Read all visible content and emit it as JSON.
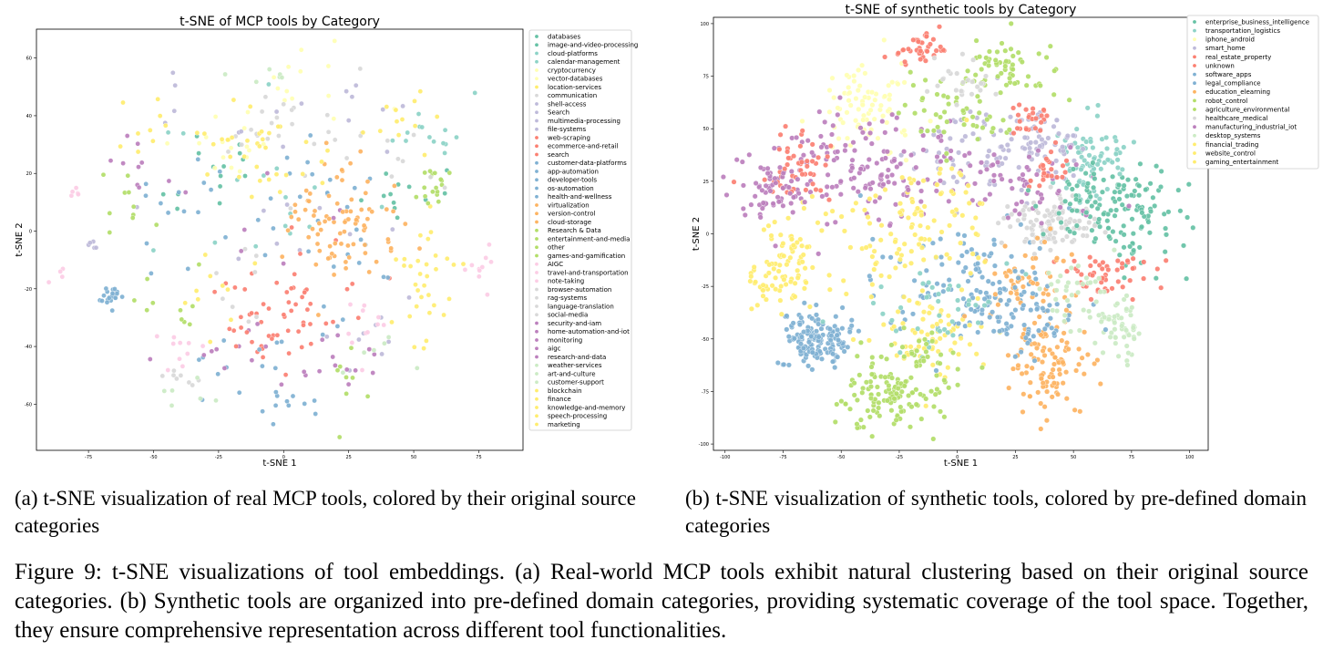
{
  "figure": {
    "subcaption_a": "(a) t-SNE visualization of real MCP tools, colored by their original source categories",
    "subcaption_b": "(b) t-SNE visualization of synthetic tools, colored by pre-defined domain categories",
    "caption": "Figure 9: t-SNE visualizations of tool embeddings. (a) Real-world MCP tools exhibit natural clustering based on their original source categories. (b) Synthetic tools are organized into pre-defined domain categories, providing systematic coverage of the tool space. Together, they ensure comprehensive representation across different tool functionalities."
  },
  "chart_data": [
    {
      "type": "scatter",
      "title": "t-SNE of MCP tools by Category",
      "xlabel": "t-SNE 1",
      "ylabel": "t-SNE 2",
      "xlim": [
        -95,
        92
      ],
      "ylim": [
        -76,
        70
      ],
      "xticks": [
        -75,
        -50,
        -25,
        0,
        25,
        50,
        75
      ],
      "yticks": [
        -60,
        -40,
        -20,
        0,
        20,
        40,
        60
      ],
      "grid": false,
      "legend_position": "right",
      "categories": [
        {
          "name": "databases",
          "color": "#66c2a5"
        },
        {
          "name": "image-and-video-processing",
          "color": "#66c2a5"
        },
        {
          "name": "cloud-platforms",
          "color": "#8dd3c7"
        },
        {
          "name": "calendar-management",
          "color": "#8dd3c7"
        },
        {
          "name": "cryptocurrency",
          "color": "#ffffb3"
        },
        {
          "name": "vector-databases",
          "color": "#ffffb3"
        },
        {
          "name": "location-services",
          "color": "#ffed6f"
        },
        {
          "name": "communication",
          "color": "#d9d9d9"
        },
        {
          "name": "shell-access",
          "color": "#bebada"
        },
        {
          "name": "Search",
          "color": "#bebada"
        },
        {
          "name": "multimedia-processing",
          "color": "#bebada"
        },
        {
          "name": "file-systems",
          "color": "#bebada"
        },
        {
          "name": "web-scraping",
          "color": "#fb8072"
        },
        {
          "name": "ecommerce-and-retail",
          "color": "#fb8072"
        },
        {
          "name": "search",
          "color": "#fb8072"
        },
        {
          "name": "customer-data-platforms",
          "color": "#80b1d3"
        },
        {
          "name": "app-automation",
          "color": "#80b1d3"
        },
        {
          "name": "developer-tools",
          "color": "#80b1d3"
        },
        {
          "name": "os-automation",
          "color": "#80b1d3"
        },
        {
          "name": "health-and-wellness",
          "color": "#80b1d3"
        },
        {
          "name": "virtualization",
          "color": "#fdb462"
        },
        {
          "name": "version-control",
          "color": "#fdb462"
        },
        {
          "name": "cloud-storage",
          "color": "#fdb462"
        },
        {
          "name": "Research & Data",
          "color": "#b3de69"
        },
        {
          "name": "entertainment-and-media",
          "color": "#b3de69"
        },
        {
          "name": "other",
          "color": "#b3de69"
        },
        {
          "name": "games-and-gamification",
          "color": "#b3de69"
        },
        {
          "name": "AIGC",
          "color": "#fccde5"
        },
        {
          "name": "travel-and-transportation",
          "color": "#fccde5"
        },
        {
          "name": "note-taking",
          "color": "#fccde5"
        },
        {
          "name": "browser-automation",
          "color": "#d9d9d9"
        },
        {
          "name": "rag-systems",
          "color": "#d9d9d9"
        },
        {
          "name": "language-translation",
          "color": "#d9d9d9"
        },
        {
          "name": "social-media",
          "color": "#d9d9d9"
        },
        {
          "name": "security-and-iam",
          "color": "#bc80bd"
        },
        {
          "name": "home-automation-and-iot",
          "color": "#bc80bd"
        },
        {
          "name": "monitoring",
          "color": "#bc80bd"
        },
        {
          "name": "aigc",
          "color": "#bc80bd"
        },
        {
          "name": "research-and-data",
          "color": "#bc80bd"
        },
        {
          "name": "weather-services",
          "color": "#ccebc5"
        },
        {
          "name": "art-and-culture",
          "color": "#ccebc5"
        },
        {
          "name": "customer-support",
          "color": "#ccebc5"
        },
        {
          "name": "blockchain",
          "color": "#ffed6f"
        },
        {
          "name": "finance",
          "color": "#ffed6f"
        },
        {
          "name": "knowledge-and-memory",
          "color": "#ffed6f"
        },
        {
          "name": "speech-processing",
          "color": "#ffed6f"
        },
        {
          "name": "marketing",
          "color": "#ffed6f"
        }
      ],
      "clusters": [
        {
          "cat": 0,
          "cx": -30,
          "cy": 20,
          "sx": 12,
          "sy": 10,
          "n": 14
        },
        {
          "cat": 1,
          "cx": 50,
          "cy": 15,
          "sx": 8,
          "sy": 6,
          "n": 12
        },
        {
          "cat": 2,
          "cx": 55,
          "cy": 36,
          "sx": 8,
          "sy": 6,
          "n": 14
        },
        {
          "cat": 3,
          "cx": -10,
          "cy": 10,
          "sx": 20,
          "sy": 15,
          "n": 16
        },
        {
          "cat": 4,
          "cx": -20,
          "cy": 30,
          "sx": 10,
          "sy": 6,
          "n": 16
        },
        {
          "cat": 5,
          "cx": 10,
          "cy": 50,
          "sx": 15,
          "sy": 8,
          "n": 14
        },
        {
          "cat": 6,
          "cx": 55,
          "cy": -25,
          "sx": 6,
          "sy": 10,
          "n": 18
        },
        {
          "cat": 7,
          "cx": -5,
          "cy": 38,
          "sx": 6,
          "sy": 6,
          "n": 14
        },
        {
          "cat": 8,
          "cx": -30,
          "cy": 40,
          "sx": 12,
          "sy": 10,
          "n": 8
        },
        {
          "cat": 9,
          "cx": 30,
          "cy": 40,
          "sx": 10,
          "sy": 8,
          "n": 8
        },
        {
          "cat": 10,
          "cx": 0,
          "cy": -5,
          "sx": 20,
          "sy": 15,
          "n": 10
        },
        {
          "cat": 11,
          "cx": 35,
          "cy": -35,
          "sx": 10,
          "sy": 8,
          "n": 8
        },
        {
          "cat": 12,
          "cx": -5,
          "cy": -25,
          "sx": 12,
          "sy": 8,
          "n": 14
        },
        {
          "cat": 13,
          "cx": -10,
          "cy": -35,
          "sx": 10,
          "sy": 8,
          "n": 14
        },
        {
          "cat": 14,
          "cx": 15,
          "cy": -15,
          "sx": 15,
          "sy": 10,
          "n": 16
        },
        {
          "cat": 15,
          "cx": -40,
          "cy": 10,
          "sx": 10,
          "sy": 10,
          "n": 14
        },
        {
          "cat": 16,
          "cx": 10,
          "cy": 15,
          "sx": 12,
          "sy": 10,
          "n": 14
        },
        {
          "cat": 17,
          "cx": -20,
          "cy": -50,
          "sx": 15,
          "sy": 8,
          "n": 14
        },
        {
          "cat": 18,
          "cx": 20,
          "cy": 0,
          "sx": 15,
          "sy": 15,
          "n": 16
        },
        {
          "cat": 19,
          "cx": 0,
          "cy": -60,
          "sx": 10,
          "sy": 4,
          "n": 10
        },
        {
          "cat": 20,
          "cx": 25,
          "cy": 10,
          "sx": 10,
          "sy": 8,
          "n": 22
        },
        {
          "cat": 21,
          "cx": 20,
          "cy": -5,
          "sx": 10,
          "sy": 8,
          "n": 20
        },
        {
          "cat": 22,
          "cx": 30,
          "cy": 0,
          "sx": 8,
          "sy": 8,
          "n": 20
        },
        {
          "cat": 23,
          "cx": -45,
          "cy": -25,
          "sx": 10,
          "sy": 8,
          "n": 10
        },
        {
          "cat": 24,
          "cx": 60,
          "cy": 15,
          "sx": 4,
          "sy": 4,
          "n": 10
        },
        {
          "cat": 25,
          "cx": -60,
          "cy": 10,
          "sx": 8,
          "sy": 8,
          "n": 10
        },
        {
          "cat": 26,
          "cx": 25,
          "cy": -55,
          "sx": 6,
          "sy": 8,
          "n": 8
        },
        {
          "cat": 27,
          "cx": -45,
          "cy": -40,
          "sx": 8,
          "sy": 4,
          "n": 10
        },
        {
          "cat": 28,
          "cx": 30,
          "cy": -30,
          "sx": 8,
          "sy": 8,
          "n": 12
        },
        {
          "cat": 29,
          "cx": 75,
          "cy": -12,
          "sx": 4,
          "sy": 4,
          "n": 10
        },
        {
          "cat": 30,
          "cx": 10,
          "cy": 30,
          "sx": 15,
          "sy": 10,
          "n": 10
        },
        {
          "cat": 31,
          "cx": -40,
          "cy": -50,
          "sx": 6,
          "sy": 4,
          "n": 8
        },
        {
          "cat": 32,
          "cx": 40,
          "cy": 25,
          "sx": 10,
          "sy": 8,
          "n": 10
        },
        {
          "cat": 33,
          "cx": -15,
          "cy": -15,
          "sx": 10,
          "sy": 10,
          "n": 8
        },
        {
          "cat": 34,
          "cx": -25,
          "cy": -40,
          "sx": 10,
          "sy": 6,
          "n": 8
        },
        {
          "cat": 35,
          "cx": -60,
          "cy": 25,
          "sx": 6,
          "sy": 6,
          "n": 8
        },
        {
          "cat": 36,
          "cx": 20,
          "cy": -40,
          "sx": 10,
          "sy": 6,
          "n": 8
        },
        {
          "cat": 37,
          "cx": -15,
          "cy": 5,
          "sx": 15,
          "sy": 10,
          "n": 8
        },
        {
          "cat": 38,
          "cx": 5,
          "cy": -45,
          "sx": 10,
          "sy": 6,
          "n": 8
        },
        {
          "cat": 39,
          "cx": -35,
          "cy": -55,
          "sx": 6,
          "sy": 4,
          "n": 6
        },
        {
          "cat": 40,
          "cx": 40,
          "cy": -45,
          "sx": 8,
          "sy": 6,
          "n": 6
        },
        {
          "cat": 41,
          "cx": -5,
          "cy": 55,
          "sx": 8,
          "sy": 4,
          "n": 6
        },
        {
          "cat": 42,
          "cx": -30,
          "cy": -20,
          "sx": 8,
          "sy": 8,
          "n": 10
        },
        {
          "cat": 43,
          "cx": 55,
          "cy": -10,
          "sx": 6,
          "sy": 6,
          "n": 14
        },
        {
          "cat": 44,
          "cx": 45,
          "cy": 40,
          "sx": 8,
          "sy": 6,
          "n": 12
        },
        {
          "cat": 45,
          "cx": -50,
          "cy": 40,
          "sx": 6,
          "sy": 6,
          "n": 10
        },
        {
          "cat": 46,
          "cx": 0,
          "cy": 20,
          "sx": 15,
          "sy": 10,
          "n": 12
        },
        {
          "cat": 15,
          "cx": -67,
          "cy": -23,
          "sx": 1.6,
          "sy": 1.6,
          "n": 22
        },
        {
          "cat": 8,
          "cx": -73,
          "cy": -4,
          "sx": 1,
          "sy": 1,
          "n": 5
        },
        {
          "cat": 27,
          "cx": -80,
          "cy": 13,
          "sx": 1,
          "sy": 1,
          "n": 5
        },
        {
          "cat": 29,
          "cx": -86,
          "cy": -16,
          "sx": 1.5,
          "sy": 1.5,
          "n": 4
        },
        {
          "cat": 45,
          "cx": -10,
          "cy": 32,
          "sx": 10,
          "sy": 6,
          "n": 22
        },
        {
          "cat": 20,
          "cx": 18,
          "cy": 5,
          "sx": 8,
          "sy": 8,
          "n": 22
        },
        {
          "cat": 12,
          "cx": 0,
          "cy": -30,
          "sx": 10,
          "sy": 6,
          "n": 16
        },
        {
          "cat": 24,
          "cx": 58,
          "cy": 14,
          "sx": 3,
          "sy": 3,
          "n": 8
        }
      ]
    },
    {
      "type": "scatter",
      "title": "t-SNE of synthetic tools by Category",
      "xlabel": "t-SNE 1",
      "ylabel": "t-SNE 2",
      "xlim": [
        -105,
        108
      ],
      "ylim": [
        -103,
        103
      ],
      "xticks": [
        -100,
        -75,
        -50,
        -25,
        0,
        25,
        50,
        75,
        100
      ],
      "yticks": [
        -100,
        -75,
        -50,
        -25,
        0,
        25,
        50,
        75,
        100
      ],
      "grid": false,
      "legend_position": "right",
      "categories": [
        {
          "name": "enterprise_business_intelligence",
          "color": "#66c2a5"
        },
        {
          "name": "transportation_logistics",
          "color": "#8dd3c7"
        },
        {
          "name": "iphone_android",
          "color": "#ffffb3"
        },
        {
          "name": "smart_home",
          "color": "#bebada"
        },
        {
          "name": "real_estate_property",
          "color": "#fb8072"
        },
        {
          "name": "unknown",
          "color": "#fb8072"
        },
        {
          "name": "software_apps",
          "color": "#80b1d3"
        },
        {
          "name": "legal_compliance",
          "color": "#80b1d3"
        },
        {
          "name": "education_elearning",
          "color": "#fdb462"
        },
        {
          "name": "robot_control",
          "color": "#b3de69"
        },
        {
          "name": "agriculture_environmental",
          "color": "#b3de69"
        },
        {
          "name": "healthcare_medical",
          "color": "#d9d9d9"
        },
        {
          "name": "manufacturing_industrial_iot",
          "color": "#bc80bd"
        },
        {
          "name": "desktop_systems",
          "color": "#ccebc5"
        },
        {
          "name": "financial_trading",
          "color": "#ffed6f"
        },
        {
          "name": "website_control",
          "color": "#ffed6f"
        },
        {
          "name": "gaming_entertainment",
          "color": "#ffed6f"
        }
      ],
      "clusters": [
        {
          "cat": 0,
          "cx": 75,
          "cy": 10,
          "sx": 10,
          "sy": 12,
          "n": 90
        },
        {
          "cat": 1,
          "cx": 55,
          "cy": 35,
          "sx": 8,
          "sy": 10,
          "n": 80
        },
        {
          "cat": 2,
          "cx": -40,
          "cy": 60,
          "sx": 10,
          "sy": 10,
          "n": 80
        },
        {
          "cat": 3,
          "cx": 10,
          "cy": 40,
          "sx": 15,
          "sy": 10,
          "n": 70
        },
        {
          "cat": 4,
          "cx": -15,
          "cy": 88,
          "sx": 6,
          "sy": 5,
          "n": 40
        },
        {
          "cat": 5,
          "cx": 65,
          "cy": -20,
          "sx": 10,
          "sy": 5,
          "n": 50
        },
        {
          "cat": 6,
          "cx": -60,
          "cy": -50,
          "sx": 8,
          "sy": 7,
          "n": 150
        },
        {
          "cat": 7,
          "cx": 0,
          "cy": -20,
          "sx": 20,
          "sy": 15,
          "n": 80
        },
        {
          "cat": 8,
          "cx": 40,
          "cy": -60,
          "sx": 8,
          "sy": 12,
          "n": 110
        },
        {
          "cat": 9,
          "cx": -30,
          "cy": -78,
          "sx": 10,
          "sy": 7,
          "n": 110
        },
        {
          "cat": 10,
          "cx": 20,
          "cy": 78,
          "sx": 10,
          "sy": 6,
          "n": 60
        },
        {
          "cat": 11,
          "cx": 40,
          "cy": 5,
          "sx": 10,
          "sy": 6,
          "n": 110
        },
        {
          "cat": 12,
          "cx": -40,
          "cy": 30,
          "sx": 20,
          "sy": 12,
          "n": 150
        },
        {
          "cat": 13,
          "cx": 70,
          "cy": -45,
          "sx": 6,
          "sy": 8,
          "n": 50
        },
        {
          "cat": 14,
          "cx": -70,
          "cy": -10,
          "sx": 8,
          "sy": 12,
          "n": 60
        },
        {
          "cat": 15,
          "cx": -10,
          "cy": -50,
          "sx": 12,
          "sy": 10,
          "n": 70
        },
        {
          "cat": 16,
          "cx": -25,
          "cy": 0,
          "sx": 15,
          "sy": 15,
          "n": 70
        },
        {
          "cat": 4,
          "cx": -70,
          "cy": 30,
          "sx": 8,
          "sy": 8,
          "n": 50
        },
        {
          "cat": 12,
          "cx": -80,
          "cy": 20,
          "sx": 8,
          "sy": 10,
          "n": 60
        },
        {
          "cat": 3,
          "cx": 35,
          "cy": 45,
          "sx": 10,
          "sy": 8,
          "n": 50
        },
        {
          "cat": 12,
          "cx": 25,
          "cy": 25,
          "sx": 15,
          "sy": 10,
          "n": 60
        },
        {
          "cat": 4,
          "cx": 30,
          "cy": 55,
          "sx": 5,
          "sy": 5,
          "n": 25
        },
        {
          "cat": 5,
          "cx": 40,
          "cy": 30,
          "sx": 5,
          "sy": 5,
          "n": 25
        },
        {
          "cat": 8,
          "cx": 30,
          "cy": -20,
          "sx": 10,
          "sy": 8,
          "n": 50
        },
        {
          "cat": 6,
          "cx": 20,
          "cy": -30,
          "sx": 15,
          "sy": 10,
          "n": 50
        },
        {
          "cat": 1,
          "cx": -10,
          "cy": -35,
          "sx": 15,
          "sy": 10,
          "n": 40
        },
        {
          "cat": 13,
          "cx": 50,
          "cy": -30,
          "sx": 10,
          "sy": 8,
          "n": 40
        },
        {
          "cat": 9,
          "cx": 0,
          "cy": 60,
          "sx": 15,
          "sy": 10,
          "n": 50
        },
        {
          "cat": 15,
          "cx": -80,
          "cy": -25,
          "sx": 6,
          "sy": 6,
          "n": 35
        },
        {
          "cat": 7,
          "cx": 30,
          "cy": -45,
          "sx": 10,
          "sy": 8,
          "n": 40
        },
        {
          "cat": 0,
          "cx": 55,
          "cy": 15,
          "sx": 10,
          "sy": 10,
          "n": 50
        },
        {
          "cat": 16,
          "cx": -5,
          "cy": 10,
          "sx": 10,
          "sy": 15,
          "n": 40
        },
        {
          "cat": 10,
          "cx": -15,
          "cy": -60,
          "sx": 10,
          "sy": 8,
          "n": 40
        },
        {
          "cat": 11,
          "cx": 0,
          "cy": 70,
          "sx": 10,
          "sy": 6,
          "n": 25
        }
      ]
    }
  ]
}
